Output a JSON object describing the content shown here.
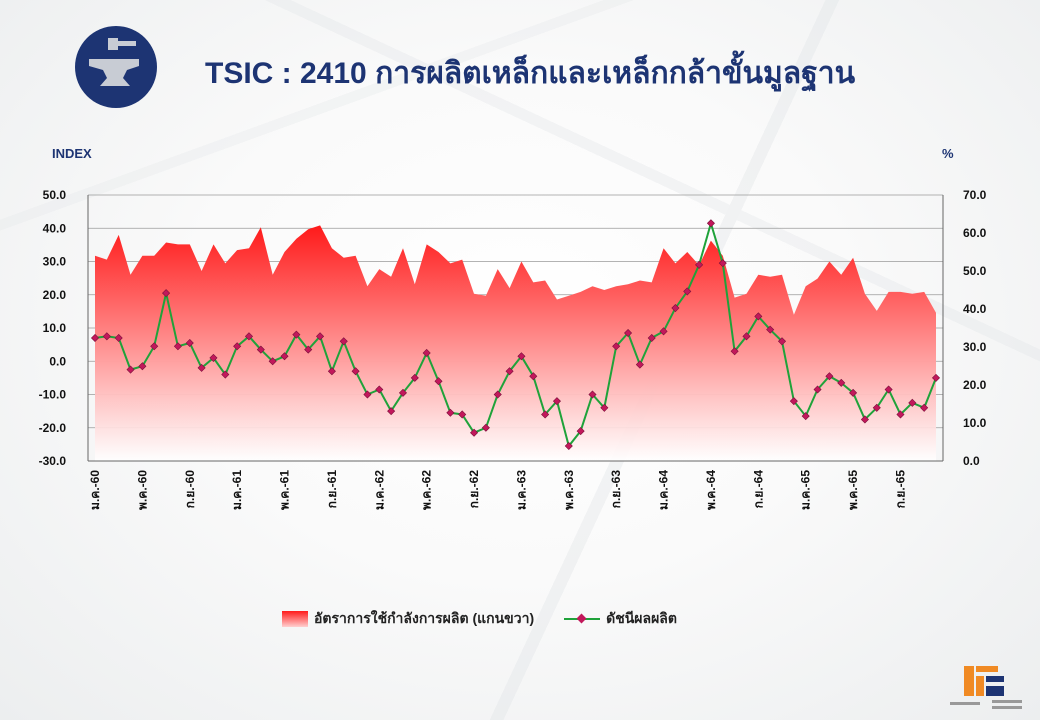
{
  "header": {
    "title": "TSIC : 2410 การผลิตเหล็กและเหล็กกล้าขั้นมูลฐาน",
    "logo_icon": "anvil-hammer-icon"
  },
  "axis_units": {
    "left": "INDEX",
    "right": "%"
  },
  "legend": {
    "area_label": "อัตราการใช้กำลังการผลิต (แกนขวา)",
    "line_label": "ดัชนีผลผลิต"
  },
  "colors": {
    "area_top": "#ff1a1a",
    "area_bottom": "#ffe5e5",
    "line": "#1fa23a",
    "marker": "#c2185b",
    "title": "#1d3473"
  },
  "chart_data": {
    "type": "area+line",
    "x_tick_labels": [
      "ม.ค.-60",
      "พ.ค.-60",
      "ก.ย.-60",
      "ม.ค.-61",
      "พ.ค.-61",
      "ก.ย.-61",
      "ม.ค.-62",
      "พ.ค.-62",
      "ก.ย.-62",
      "ม.ค.-63",
      "พ.ค.-63",
      "ก.ย.-63",
      "ม.ค.-64",
      "พ.ค.-64",
      "ก.ย.-64",
      "ม.ค.-65",
      "พ.ค.-65",
      "ก.ย.-65"
    ],
    "y_left": {
      "min": -30,
      "max": 50,
      "step": 10,
      "tick_labels": [
        "50.0",
        "40.0",
        "30.0",
        "20.0",
        "10.0",
        "0.0",
        "-10.0",
        "-20.0",
        "-30.0"
      ]
    },
    "y_right": {
      "min": 0,
      "max": 70,
      "step": 10,
      "tick_labels": [
        "70.0",
        "60.0",
        "50.0",
        "40.0",
        "30.0",
        "20.0",
        "10.0",
        "0.0"
      ]
    },
    "grid": "horizontal",
    "legend_position": "bottom",
    "series": [
      {
        "name": "อัตราการใช้กำลังการผลิต (แกนขวา)",
        "axis": "right",
        "type": "area",
        "values": [
          54.0,
          53.0,
          59.5,
          49.0,
          54.0,
          54.0,
          57.5,
          57.0,
          57.0,
          50.0,
          57.0,
          52.0,
          55.5,
          56.0,
          61.5,
          49.0,
          55.0,
          58.5,
          61.0,
          62.0,
          56.0,
          53.5,
          54.0,
          46.0,
          50.5,
          48.5,
          56.0,
          46.5,
          57.0,
          55.0,
          52.0,
          53.0,
          44.0,
          43.5,
          50.5,
          45.5,
          52.5,
          47.0,
          47.5,
          42.5,
          43.5,
          44.5,
          46.0,
          45.0,
          46.0,
          46.5,
          47.5,
          47.0,
          56.0,
          52.0,
          55.0,
          51.5,
          58.0,
          54.0,
          43.0,
          44.0,
          49.0,
          48.5,
          49.0,
          38.5,
          46.0,
          48.0,
          52.5,
          49.0,
          53.5,
          44.0,
          39.5,
          44.5,
          44.5,
          44.0,
          44.5,
          39.0
        ]
      },
      {
        "name": "ดัชนีผลผลิต",
        "axis": "left",
        "type": "line",
        "values": [
          7.0,
          7.5,
          7.0,
          -2.5,
          -1.5,
          4.5,
          20.5,
          4.5,
          5.5,
          -2.0,
          1.0,
          -4.0,
          4.5,
          7.5,
          3.5,
          0.0,
          1.5,
          8.0,
          3.5,
          7.5,
          -3.0,
          6.0,
          -3.0,
          -10.0,
          -8.5,
          -15.0,
          -9.5,
          -5.0,
          2.5,
          -6.0,
          -15.5,
          -16.0,
          -21.5,
          -20.0,
          -10.0,
          -3.0,
          1.5,
          -4.5,
          -16.0,
          -12.0,
          -25.5,
          -21.0,
          -10.0,
          -14.0,
          4.5,
          8.5,
          -1.0,
          7.0,
          9.0,
          16.0,
          21.0,
          29.0,
          41.5,
          29.5,
          3.0,
          7.5,
          13.5,
          9.5,
          6.0,
          -12.0,
          -16.5,
          -8.5,
          -4.5,
          -6.5,
          -9.5,
          -17.5,
          -14.0,
          -8.5,
          -16.0,
          -12.5,
          -14.0,
          -5.0
        ]
      }
    ]
  }
}
